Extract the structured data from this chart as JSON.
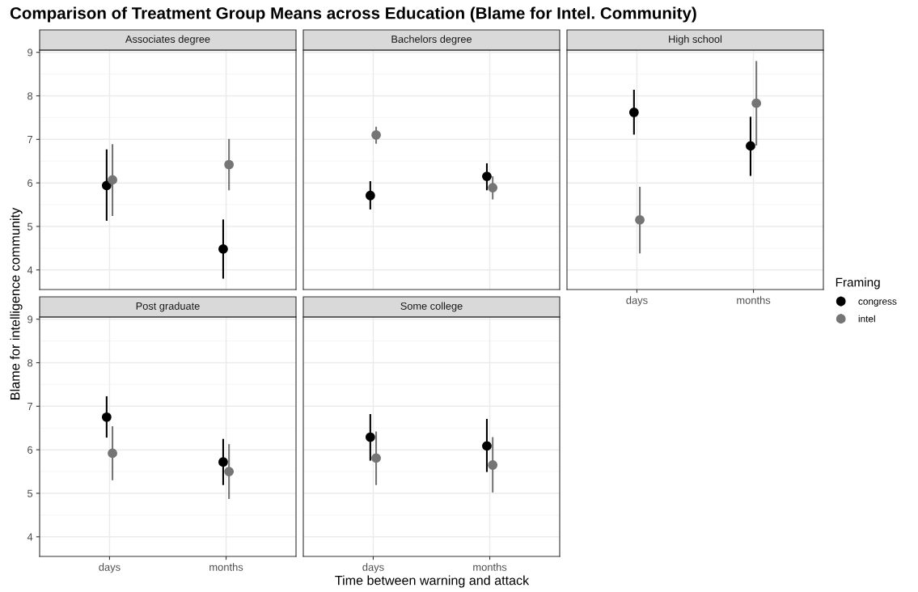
{
  "chart_data": [
    {
      "type": "scatter",
      "title": "Comparison of Treatment Group Means across Education (Blame for Intel. Community)",
      "subtitle": "Associates degree",
      "ylabel": "Blame for intelligence community",
      "legend": "right",
      "legend_title": "Framing",
      "categories": [
        "days",
        "months"
      ],
      "series": [
        {
          "name": "congress",
          "color": "#000000",
          "values": [
            5.94,
            4.48
          ],
          "errors": [
            [
              5.13,
              6.77
            ],
            [
              3.8,
              5.16
            ]
          ]
        },
        {
          "name": "intel",
          "color": "#757575",
          "values": [
            6.07,
            6.42
          ],
          "errors": [
            [
              5.24,
              6.89
            ],
            [
              5.83,
              7.01
            ]
          ]
        }
      ],
      "ylim": [
        3.55,
        9.05
      ],
      "yticks": [
        4,
        5,
        6,
        7,
        8,
        9
      ],
      "grid": true,
      "marker": "circle",
      "tick_labels": "y"
    },
    {
      "type": "scatter",
      "subtitle": "Bachelors degree",
      "categories": [
        "days",
        "months"
      ],
      "series": [
        {
          "name": "congress",
          "color": "#000000",
          "values": [
            5.71,
            6.15
          ],
          "errors": [
            [
              5.39,
              6.04
            ],
            [
              5.83,
              6.45
            ]
          ]
        },
        {
          "name": "intel",
          "color": "#757575",
          "values": [
            7.1,
            5.89
          ],
          "errors": [
            [
              6.9,
              7.29
            ],
            [
              5.62,
              6.15
            ]
          ]
        }
      ],
      "ylim": [
        3.55,
        9.05
      ],
      "yticks": [
        4,
        5,
        6,
        7,
        8,
        9
      ],
      "grid": true,
      "marker": "circle",
      "tick_labels": false
    },
    {
      "type": "scatter",
      "subtitle": "High school",
      "categories": [
        "days",
        "months"
      ],
      "series": [
        {
          "name": "congress",
          "color": "#000000",
          "values": [
            7.62,
            6.85
          ],
          "errors": [
            [
              7.11,
              8.14
            ],
            [
              6.16,
              7.52
            ]
          ]
        },
        {
          "name": "intel",
          "color": "#757575",
          "values": [
            5.15,
            7.83
          ],
          "errors": [
            [
              4.38,
              5.91
            ],
            [
              6.86,
              8.8
            ]
          ]
        }
      ],
      "ylim": [
        3.55,
        9.05
      ],
      "yticks": [
        4,
        5,
        6,
        7,
        8,
        9
      ],
      "grid": true,
      "marker": "circle",
      "tick_labels": "x"
    },
    {
      "type": "scatter",
      "subtitle": "Post graduate",
      "categories": [
        "days",
        "months"
      ],
      "series": [
        {
          "name": "congress",
          "color": "#000000",
          "values": [
            6.75,
            5.72
          ],
          "errors": [
            [
              6.28,
              7.23
            ],
            [
              5.19,
              6.25
            ]
          ]
        },
        {
          "name": "intel",
          "color": "#757575",
          "values": [
            5.92,
            5.5
          ],
          "errors": [
            [
              5.3,
              6.54
            ],
            [
              4.87,
              6.13
            ]
          ]
        }
      ],
      "ylim": [
        3.55,
        9.05
      ],
      "yticks": [
        4,
        5,
        6,
        7,
        8,
        9
      ],
      "grid": true,
      "marker": "circle"
    },
    {
      "type": "scatter",
      "subtitle": "Some college",
      "xlabel": "Time between warning and attack",
      "categories": [
        "days",
        "months"
      ],
      "series": [
        {
          "name": "congress",
          "color": "#000000",
          "values": [
            6.29,
            6.09
          ],
          "errors": [
            [
              5.75,
              6.82
            ],
            [
              5.49,
              6.71
            ]
          ]
        },
        {
          "name": "intel",
          "color": "#757575",
          "values": [
            5.81,
            5.65
          ],
          "errors": [
            [
              5.19,
              6.42
            ],
            [
              5.02,
              6.29
            ]
          ]
        }
      ],
      "ylim": [
        3.55,
        9.05
      ],
      "yticks": [
        4,
        5,
        6,
        7,
        8,
        9
      ],
      "grid": true,
      "marker": "circle",
      "tick_labels": "x"
    }
  ]
}
